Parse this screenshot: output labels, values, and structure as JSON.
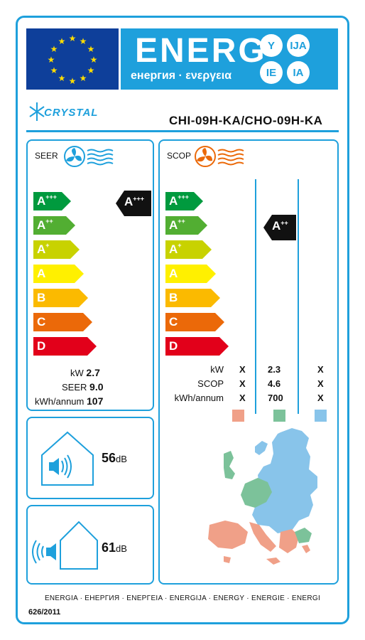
{
  "header": {
    "energy_title": "ENERG",
    "energy_subtitle": "енергия · ενεργεια",
    "lang_codes": [
      "Y",
      "IJA",
      "IE",
      "IA"
    ]
  },
  "brand": {
    "name": "CRYSTAL"
  },
  "model": "CHI-09H-KA/CHO-09H-KA",
  "cooling": {
    "label": "SEER",
    "classes": [
      "A+++",
      "A++",
      "A+",
      "A",
      "B",
      "C",
      "D"
    ],
    "rating": "A+++",
    "kw_label": "kW",
    "kw_value": "2.7",
    "seer_label": "SEER",
    "seer_value": "9.0",
    "annual_label": "kWh/annum",
    "annual_value": "107"
  },
  "heating": {
    "label": "SCOP",
    "classes": [
      "A+++",
      "A++",
      "A+",
      "A",
      "B",
      "C",
      "D"
    ],
    "rating": "A++",
    "rows": [
      {
        "label": "kW",
        "values": [
          "X",
          "2.3",
          "X"
        ]
      },
      {
        "label": "SCOP",
        "values": [
          "X",
          "4.6",
          "X"
        ]
      },
      {
        "label": "kWh/annum",
        "values": [
          "X",
          "700",
          "X"
        ]
      }
    ],
    "zone_colors": [
      "#f0a088",
      "#7cc29a",
      "#88c4ea"
    ]
  },
  "noise_indoor": {
    "value": "56",
    "unit": "dB"
  },
  "noise_outdoor": {
    "value": "61",
    "unit": "dB"
  },
  "footer": {
    "languages": "ENERGIA · ЕНЕРГИЯ · ΕΝΕΡΓΕΙΑ · ENERGIJA · ENERGY · ENERGIE · ENERGI",
    "regulation": "626/2011"
  },
  "class_colors": [
    "#009a3e",
    "#52ae32",
    "#c8d200",
    "#fff000",
    "#fbba00",
    "#eb6909",
    "#e2001a"
  ]
}
